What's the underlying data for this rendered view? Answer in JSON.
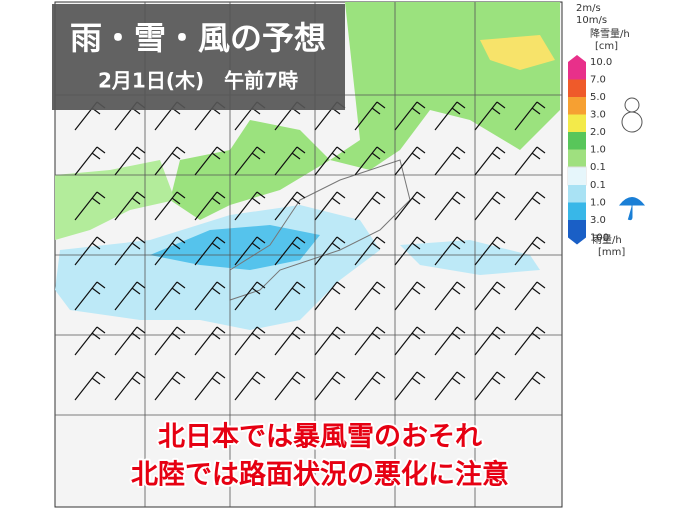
{
  "header": {
    "title": "雨・雪・風の予想",
    "datetime": "2月1日(木)　午前7時"
  },
  "legend": {
    "wind": [
      "2m/s",
      "10m/s"
    ],
    "snow": {
      "label": "降雪量/h",
      "unit": "[cm]",
      "ticks": [
        "10.0",
        "7.0",
        "5.0",
        "3.0",
        "2.0",
        "1.0",
        "0.1"
      ]
    },
    "rain": {
      "label": "雨量/h",
      "unit": "[mm]",
      "ticks": [
        "0.1",
        "1.0",
        "3.0",
        "100"
      ]
    }
  },
  "caption": [
    "北日本では暴風雪のおそれ",
    "北陸では路面状況の悪化に注意"
  ]
}
